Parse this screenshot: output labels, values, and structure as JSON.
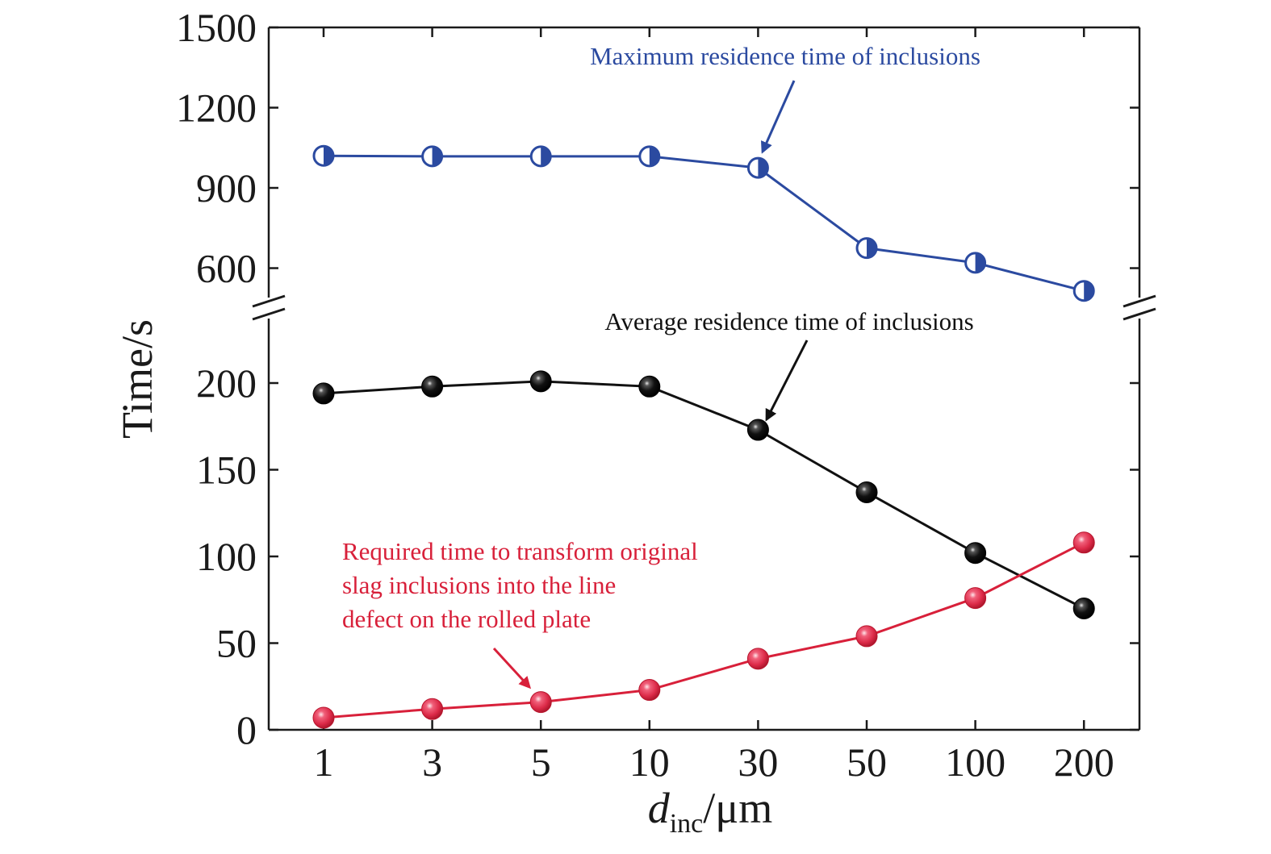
{
  "chart_data": {
    "type": "line",
    "xlabel": {
      "main": "d",
      "sub": "inc",
      "unit": "/μm"
    },
    "ylabel": "Time/s",
    "categories": [
      "1",
      "3",
      "5",
      "10",
      "30",
      "50",
      "100",
      "200"
    ],
    "y_axis_break": true,
    "upper_ylim": [
      490,
      1500
    ],
    "upper_yticks": [
      "600",
      "900",
      "1200",
      "1500"
    ],
    "lower_ylim": [
      0,
      240
    ],
    "lower_yticks": [
      "0",
      "50",
      "100",
      "150",
      "200"
    ],
    "series": [
      {
        "key": "max",
        "name": "Maximum residence time of inclusions",
        "axis": "upper",
        "color": "#2b4aa0",
        "marker": "half-filled circle",
        "values": [
          1020,
          1018,
          1018,
          1018,
          975,
          675,
          620,
          515
        ]
      },
      {
        "key": "avg",
        "name": "Average residence time of inclusions",
        "axis": "lower",
        "color": "#111111",
        "marker": "black sphere",
        "values": [
          194,
          198,
          201,
          198,
          173,
          137,
          102,
          70
        ]
      },
      {
        "key": "req",
        "name": "Required time to transform original slag inclusions into the line defect on the rolled plate",
        "axis": "lower",
        "color": "#d8203a",
        "marker": "red sphere",
        "values": [
          7,
          12,
          16,
          23,
          41,
          54,
          76,
          108
        ]
      }
    ],
    "annotations": {
      "max": [
        "Maximum residence time of inclusions"
      ],
      "avg": [
        "Average residence time of inclusions"
      ],
      "req": [
        "Required time to transform original",
        "slag inclusions into the line",
        "defect on the rolled plate"
      ]
    }
  }
}
